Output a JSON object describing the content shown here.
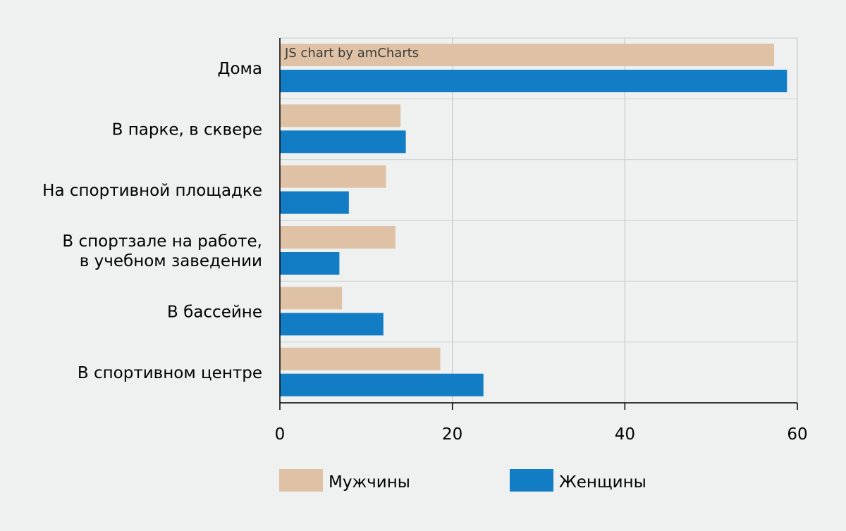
{
  "watermark": "JS chart by amCharts",
  "chart_data": {
    "type": "bar",
    "orientation": "horizontal",
    "categories": [
      "Дома",
      "В парке, в сквере",
      "На спортивной площадке",
      "В спортзале на работе,\nв учебном заведении",
      "В бассейне",
      "В спортивном центре"
    ],
    "series": [
      {
        "name": "Мужчины",
        "color": "#dfc2a5",
        "values": [
          57.3,
          14.0,
          12.3,
          13.4,
          7.2,
          18.6
        ]
      },
      {
        "name": "Женщины",
        "color": "#127dc5",
        "values": [
          58.8,
          14.6,
          8.0,
          6.9,
          12.0,
          23.6
        ]
      }
    ],
    "xlim": [
      0,
      60
    ],
    "xticks": [
      0,
      20,
      40,
      60
    ],
    "grid": true,
    "legend_position": "bottom",
    "title": "",
    "xlabel": "",
    "ylabel": ""
  }
}
